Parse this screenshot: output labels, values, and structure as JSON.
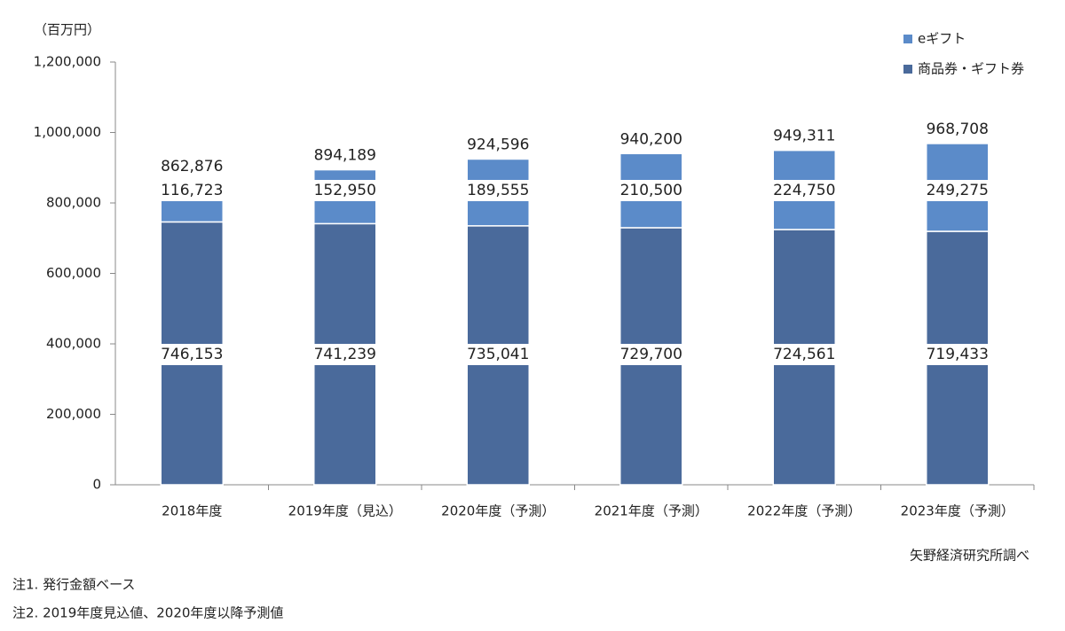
{
  "chart_data": {
    "type": "stacked_bar",
    "y_axis_unit": "（百万円）",
    "categories": [
      "2018年度",
      "2019年度（見込）",
      "2020年度（予測）",
      "2021年度（予測）",
      "2022年度（予測）",
      "2023年度（予測）"
    ],
    "series": [
      {
        "name": "商品券・ギフト券",
        "color": "#4a6a9b",
        "values": [
          746153,
          741239,
          735041,
          729700,
          724561,
          719433
        ],
        "value_labels": [
          "746,153",
          "741,239",
          "735,041",
          "729,700",
          "724,561",
          "719,433"
        ]
      },
      {
        "name": "eギフト",
        "color": "#5b8bc9",
        "values": [
          116723,
          152950,
          189555,
          210500,
          224750,
          249275
        ],
        "value_labels": [
          "116,723",
          "152,950",
          "189,555",
          "210,500",
          "224,750",
          "249,275"
        ]
      }
    ],
    "totals": {
      "values": [
        862876,
        894189,
        924596,
        940200,
        949311,
        968708
      ],
      "value_labels": [
        "862,876",
        "894,189",
        "924,596",
        "940,200",
        "949,311",
        "968,708"
      ]
    },
    "ylim": [
      0,
      1200000
    ],
    "yticks": [
      0,
      {
        "value": 200000,
        "label": "200,000"
      },
      {
        "value": 400000,
        "label": "400,000"
      },
      {
        "value": 600000,
        "label": "600,000"
      },
      {
        "value": 800000,
        "label": "800,000"
      },
      {
        "value": 1000000,
        "label": "1,000,000"
      },
      {
        "value": 1200000,
        "label": "1,200,000"
      }
    ],
    "source": "矢野経済研究所調べ",
    "notes": [
      "注1. 発行金額ベース",
      "注2. 2019年度見込値、2020年度以降予測値"
    ]
  }
}
